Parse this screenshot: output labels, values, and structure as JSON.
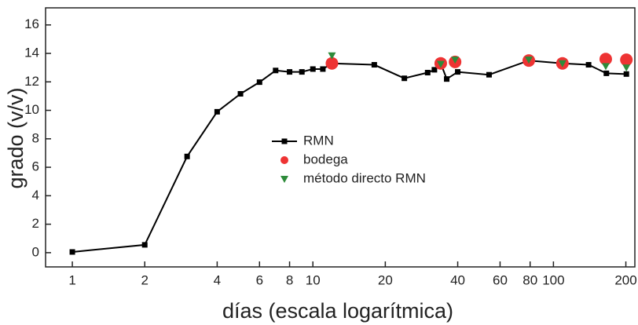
{
  "chart_data": {
    "type": "line",
    "x_label": "días (escala logarítmica)",
    "y_label": "grado (v/v)",
    "xscale": "log",
    "xlim": [
      0.774,
      218
    ],
    "ylim": [
      -1,
      17.2
    ],
    "xticks": [
      1,
      2,
      4,
      6,
      8,
      10,
      20,
      40,
      60,
      80,
      100,
      200
    ],
    "yticks": [
      0,
      2,
      4,
      6,
      8,
      10,
      12,
      14,
      16
    ],
    "series": [
      {
        "name": "RMN",
        "color": "#000000",
        "marker": "square",
        "x": [
          1,
          2,
          3,
          4,
          5,
          6,
          7,
          8,
          9,
          10,
          11,
          12,
          18,
          24,
          30,
          32,
          34,
          36,
          40,
          54,
          79,
          109,
          140,
          166,
          201
        ],
        "values": [
          0.05,
          0.55,
          6.76,
          9.9,
          11.16,
          11.98,
          12.8,
          12.7,
          12.7,
          12.9,
          12.9,
          13.3,
          13.2,
          12.25,
          12.65,
          12.85,
          13.3,
          12.2,
          12.7,
          12.5,
          13.5,
          13.3,
          13.2,
          12.6,
          12.55
        ]
      },
      {
        "name": "bodega",
        "color": "#ee3333",
        "marker": "circle",
        "x": [
          12,
          34,
          39,
          79,
          109,
          165,
          201
        ],
        "values": [
          13.3,
          13.3,
          13.4,
          13.5,
          13.3,
          13.6,
          13.55
        ]
      },
      {
        "name": "método directo RMN",
        "color": "#2e8b3a",
        "marker": "triangle",
        "x": [
          12,
          34,
          39,
          79,
          109,
          165,
          201
        ],
        "values": [
          13.85,
          13.25,
          13.55,
          13.55,
          13.3,
          13.1,
          13.0
        ]
      }
    ]
  }
}
